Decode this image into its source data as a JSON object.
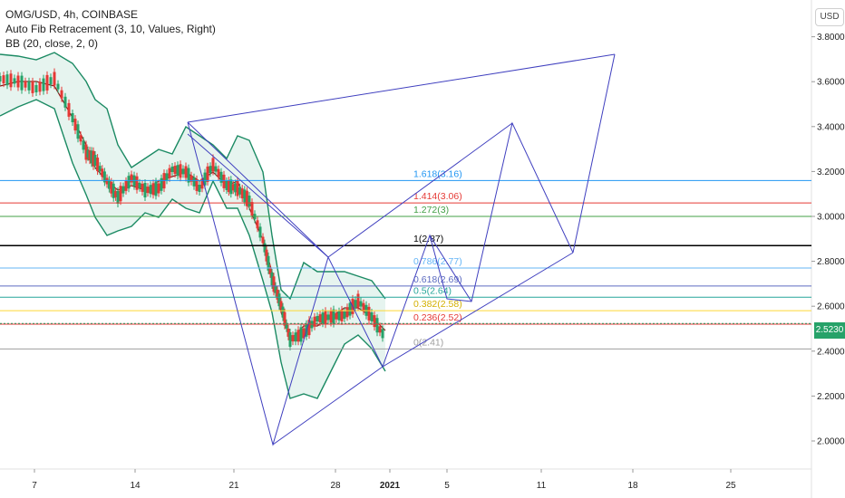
{
  "header": {
    "symbol": "OMG/USD, 4h, COINBASE",
    "indicator_fib": "Auto Fib Retracement (3, 10, Values, Right)",
    "indicator_bb": "BB (20, close, 2, 0)"
  },
  "currency_button": "USD",
  "price_tag": {
    "value": "2.5230",
    "price": 2.523,
    "color": "#26a269"
  },
  "chart_data": {
    "type": "candlestick",
    "ylim": [
      1.86,
      4.02
    ],
    "xlim": [
      0,
      932
    ],
    "y_ticks": [
      "2.0000",
      "2.2000",
      "2.4000",
      "2.6000",
      "2.8000",
      "3.0000",
      "3.2000",
      "3.4000",
      "3.6000",
      "3.8000"
    ],
    "y_tick_values": [
      2.0,
      2.2,
      2.4,
      2.6,
      2.8,
      3.0,
      3.2,
      3.4,
      3.6,
      3.8
    ],
    "x_ticks": [
      "7",
      "14",
      "21",
      "28",
      "2021",
      "5",
      "11",
      "18",
      "25"
    ],
    "fib_levels": [
      {
        "label": "1.618(3.16)",
        "price": 3.16,
        "color": "#2196f3"
      },
      {
        "label": "1.414(3.06)",
        "price": 3.06,
        "color": "#e53935"
      },
      {
        "label": "1.272(3)",
        "price": 3.0,
        "color": "#43a047"
      },
      {
        "label": "1(2.87)",
        "price": 2.87,
        "color": "#000000"
      },
      {
        "label": "0.786(2.77)",
        "price": 2.77,
        "color": "#64b5f6"
      },
      {
        "label": "0.618(2.69)",
        "price": 2.69,
        "color": "#5c6bc0"
      },
      {
        "label": "0.5(2.64)",
        "price": 2.64,
        "color": "#26a69a"
      },
      {
        "label": "0.382(2.58)",
        "price": 2.58,
        "color": "#fdd835"
      },
      {
        "label": "0.236(2.52)",
        "price": 2.52,
        "color": "#e53935"
      },
      {
        "label": "0(2.41)",
        "price": 2.41,
        "color": "#9e9e9e"
      }
    ],
    "harmonic_polyline": [
      [
        1.2,
        3.5
      ],
      [
        2.3,
        1.98
      ],
      [
        4.0,
        2.33
      ],
      [
        5.5,
        3.84
      ],
      [
        4.5,
        2.89
      ],
      [
        2.8,
        2.88
      ],
      [
        1.2,
        3.5
      ]
    ],
    "projection_path": [
      [
        4.0,
        2.33
      ],
      [
        4.6,
        2.99
      ],
      [
        4.9,
        2.65
      ],
      [
        5.3,
        3.49
      ],
      [
        5.8,
        2.89
      ]
    ]
  },
  "colors": {
    "harmonic": "#3f3fbf",
    "bb_band": "#1b8a63",
    "bb_fill": "#e6f4ef",
    "bb_basis": "#8b1a1a",
    "candle_up": "#26a269",
    "candle_down": "#e53935"
  }
}
